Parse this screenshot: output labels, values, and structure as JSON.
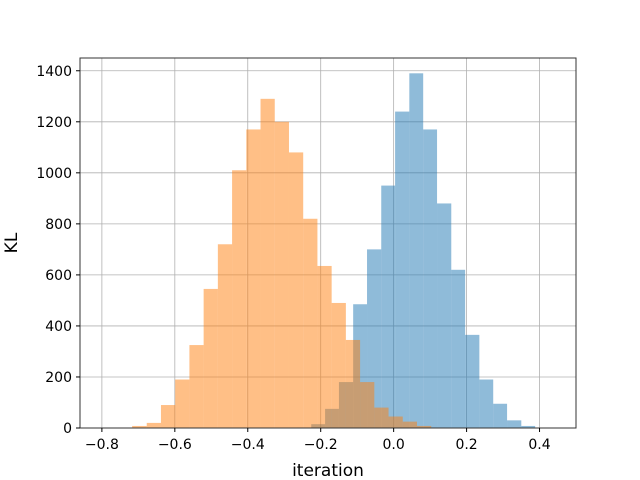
{
  "chart_data": {
    "type": "bar",
    "title": "",
    "xlabel": "iteration",
    "ylabel": "KL",
    "xlim": [
      -0.86,
      0.5
    ],
    "ylim": [
      0,
      1450
    ],
    "xticks": [
      -0.8,
      -0.6,
      -0.4,
      -0.2,
      0.0,
      0.2,
      0.4
    ],
    "xtick_labels": [
      "−0.8",
      "−0.6",
      "−0.4",
      "−0.2",
      "0.0",
      "0.2",
      "0.4"
    ],
    "yticks": [
      0,
      200,
      400,
      600,
      800,
      1000,
      1200,
      1400
    ],
    "ytick_labels": [
      "0",
      "200",
      "400",
      "600",
      "800",
      "1000",
      "1200",
      "1400"
    ],
    "grid": true,
    "legend": "none",
    "series": [
      {
        "color": "#1f77b4",
        "alpha": 0.5,
        "bin_edges": [
          -0.265,
          -0.226,
          -0.188,
          -0.15,
          -0.111,
          -0.073,
          -0.034,
          0.004,
          0.043,
          0.081,
          0.119,
          0.158,
          0.196,
          0.235,
          0.273,
          0.311,
          0.35,
          0.388,
          0.427,
          0.465
        ],
        "counts": [
          2,
          15,
          75,
          180,
          485,
          700,
          950,
          1240,
          1390,
          1170,
          880,
          620,
          365,
          190,
          95,
          30,
          8,
          2,
          1
        ]
      },
      {
        "color": "#ff7f0e",
        "alpha": 0.5,
        "bin_edges": [
          -0.755,
          -0.717,
          -0.677,
          -0.638,
          -0.599,
          -0.56,
          -0.521,
          -0.482,
          -0.443,
          -0.404,
          -0.365,
          -0.326,
          -0.287,
          -0.248,
          -0.209,
          -0.17,
          -0.131,
          -0.092,
          -0.053,
          -0.014,
          0.025,
          0.064,
          0.103,
          0.142
        ],
        "counts": [
          2,
          8,
          20,
          90,
          190,
          325,
          545,
          720,
          1010,
          1170,
          1290,
          1200,
          1080,
          820,
          635,
          490,
          345,
          180,
          80,
          45,
          25,
          8,
          2
        ]
      }
    ]
  }
}
